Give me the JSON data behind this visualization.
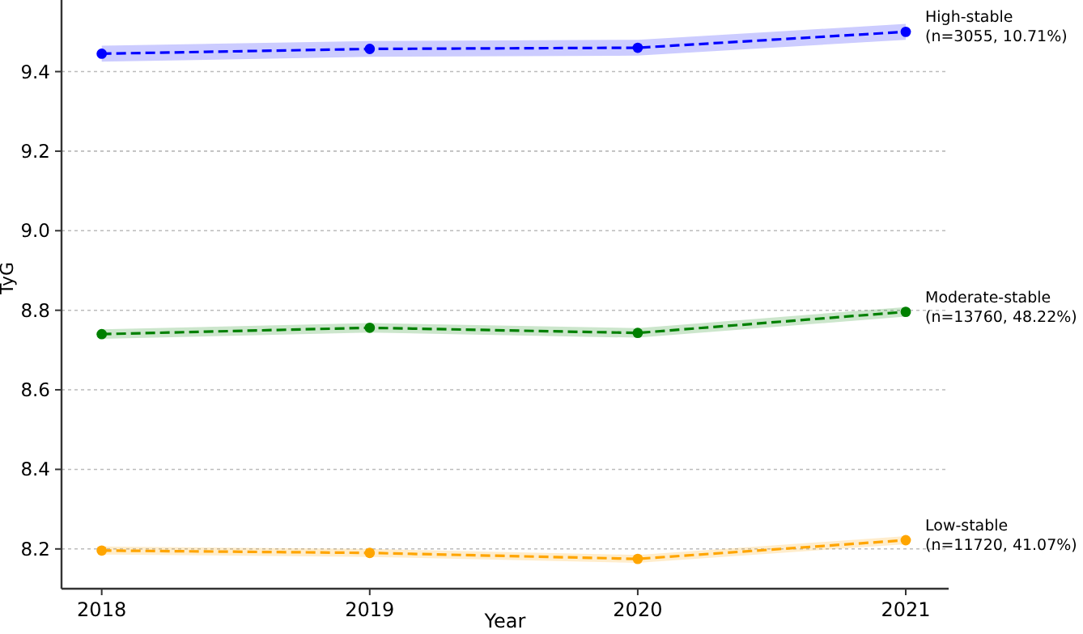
{
  "chart_data": {
    "type": "line",
    "xlabel": "Year",
    "ylabel": "TyG",
    "x": [
      2018,
      2019,
      2020,
      2021
    ],
    "xlim": [
      2017.85,
      2021.16
    ],
    "xticks": [
      2018,
      2019,
      2020,
      2021
    ],
    "ylim": [
      8.1,
      9.58
    ],
    "yticks": [
      {
        "value": 8.2,
        "label": "8.2"
      },
      {
        "value": 8.4,
        "label": "8.4"
      },
      {
        "value": 8.6,
        "label": "8.6"
      },
      {
        "value": 8.8,
        "label": "8.8"
      },
      {
        "value": 9,
        "label": "9.0"
      },
      {
        "value": 9.2,
        "label": "9.2"
      },
      {
        "value": 9.4,
        "label": "9.4"
      }
    ],
    "grid": "y",
    "marker": "circle",
    "line_style": "dashed",
    "series": [
      {
        "name": "High-stable\n(n=3055, 10.71%)",
        "color": "#0000ff",
        "values": [
          9.445,
          9.457,
          9.46,
          9.5
        ],
        "lower": [
          9.425,
          9.437,
          9.44,
          9.48
        ],
        "upper": [
          9.465,
          9.477,
          9.48,
          9.52
        ]
      },
      {
        "name": "Moderate-stable\n(n=13760, 48.22%)",
        "color": "#008000",
        "values": [
          8.74,
          8.756,
          8.743,
          8.796
        ],
        "lower": [
          8.728,
          8.744,
          8.731,
          8.784
        ],
        "upper": [
          8.752,
          8.768,
          8.755,
          8.808
        ]
      },
      {
        "name": "Low-stable\n(n=11720, 41.07%)",
        "color": "#ffa500",
        "values": [
          8.196,
          8.19,
          8.175,
          8.222
        ],
        "lower": [
          8.186,
          8.18,
          8.165,
          8.212
        ],
        "upper": [
          8.206,
          8.2,
          8.185,
          8.232
        ]
      }
    ]
  }
}
